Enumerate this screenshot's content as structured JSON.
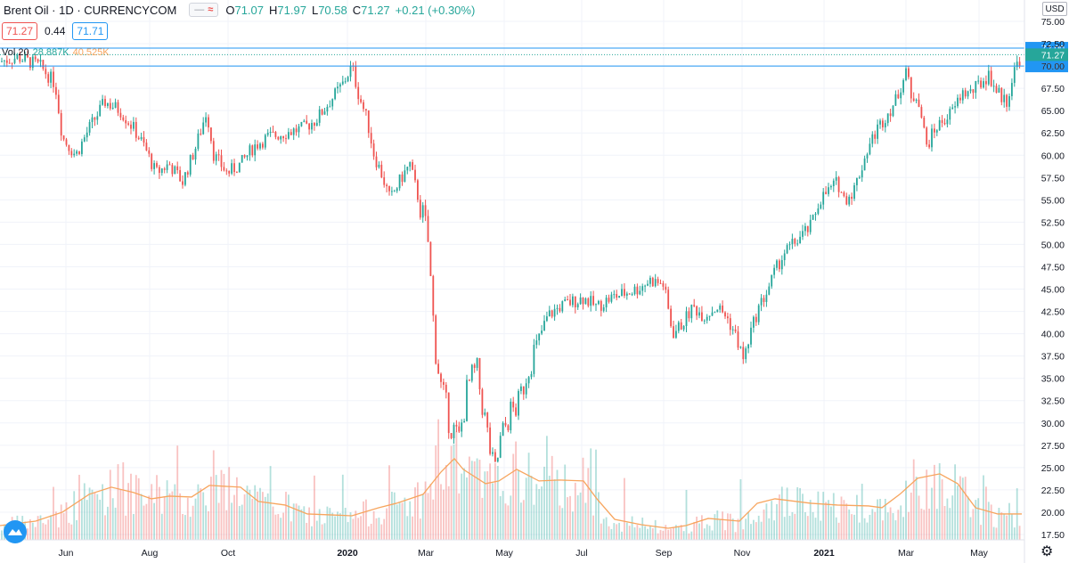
{
  "legend": {
    "title": "Brent Oil · 1D · CURRENCYCOM",
    "btn_dash": "—",
    "btn_wave": "≈",
    "o_label": "O",
    "o_value": "71.07",
    "h_label": "H",
    "h_value": "71.97",
    "l_label": "L",
    "l_value": "70.58",
    "c_label": "C",
    "c_value": "71.27",
    "change": "+0.21 (+0.30%)"
  },
  "quote": {
    "bid": "71.27",
    "spread": "0.44",
    "ask": "71.71"
  },
  "volume_legend": {
    "label": "Vol 20",
    "value": "28.887K",
    "ma": "40.525K"
  },
  "currency": "USD",
  "colors": {
    "up": "#26a69a",
    "down": "#ef5350",
    "line": "#2196f3",
    "ma": "#f7a55e",
    "price_label": "#2196f3",
    "last_label": "#26a69a"
  },
  "chart_data": {
    "type": "candlestick",
    "title": "Brent Oil · 1D · CURRENCYCOM",
    "ylim": [
      16.5,
      76
    ],
    "y_ticks": [
      "75.00",
      "72.50",
      "70.00",
      "67.50",
      "65.00",
      "62.50",
      "60.00",
      "57.50",
      "55.00",
      "52.50",
      "50.00",
      "47.50",
      "45.00",
      "42.50",
      "40.00",
      "37.50",
      "35.00",
      "32.50",
      "30.00",
      "27.50",
      "25.00",
      "22.50",
      "20.00",
      "17.50"
    ],
    "x_ticks": [
      "Jun",
      "Aug",
      "Oct",
      "2020",
      "Mar",
      "May",
      "Jul",
      "Sep",
      "Nov",
      "2021",
      "Mar",
      "May"
    ],
    "price_lines": [
      {
        "value": 72.0,
        "label": "72.00"
      },
      {
        "value": 70.0,
        "label": "70.00"
      }
    ],
    "last_price": {
      "value": 71.27,
      "label": "71.27"
    },
    "price_path": [
      [
        0,
        70.5
      ],
      [
        20,
        71
      ],
      [
        45,
        70
      ],
      [
        62,
        68
      ],
      [
        70,
        62
      ],
      [
        85,
        60
      ],
      [
        100,
        63
      ],
      [
        118,
        66
      ],
      [
        135,
        65
      ],
      [
        150,
        63
      ],
      [
        162,
        61
      ],
      [
        175,
        58
      ],
      [
        190,
        59
      ],
      [
        205,
        57
      ],
      [
        220,
        61
      ],
      [
        232,
        65
      ],
      [
        240,
        60
      ],
      [
        255,
        58
      ],
      [
        270,
        59
      ],
      [
        285,
        61
      ],
      [
        300,
        62
      ],
      [
        320,
        62.5
      ],
      [
        340,
        63
      ],
      [
        355,
        64
      ],
      [
        370,
        66
      ],
      [
        385,
        68
      ],
      [
        395,
        70
      ],
      [
        402,
        67
      ],
      [
        412,
        64
      ],
      [
        420,
        60
      ],
      [
        428,
        58
      ],
      [
        438,
        55
      ],
      [
        448,
        57
      ],
      [
        460,
        59
      ],
      [
        470,
        55
      ],
      [
        480,
        51
      ],
      [
        484,
        45
      ],
      [
        488,
        39
      ],
      [
        495,
        34
      ],
      [
        505,
        30
      ],
      [
        515,
        28
      ],
      [
        525,
        34
      ],
      [
        535,
        36
      ],
      [
        545,
        30
      ],
      [
        555,
        24
      ],
      [
        562,
        28
      ],
      [
        572,
        31
      ],
      [
        582,
        32
      ],
      [
        592,
        36
      ],
      [
        603,
        39
      ],
      [
        615,
        42
      ],
      [
        628,
        43
      ],
      [
        640,
        43.5
      ],
      [
        655,
        44
      ],
      [
        670,
        43
      ],
      [
        685,
        44
      ],
      [
        700,
        44.5
      ],
      [
        715,
        45
      ],
      [
        730,
        46
      ],
      [
        745,
        45.5
      ],
      [
        755,
        40
      ],
      [
        765,
        41
      ],
      [
        778,
        43
      ],
      [
        790,
        42
      ],
      [
        805,
        43
      ],
      [
        815,
        42
      ],
      [
        825,
        40
      ],
      [
        835,
        37
      ],
      [
        842,
        40
      ],
      [
        852,
        43
      ],
      [
        860,
        44.5
      ],
      [
        870,
        47
      ],
      [
        880,
        49
      ],
      [
        890,
        50
      ],
      [
        900,
        51
      ],
      [
        910,
        52
      ],
      [
        920,
        55
      ],
      [
        930,
        56
      ],
      [
        940,
        57
      ],
      [
        948,
        55
      ],
      [
        958,
        56
      ],
      [
        965,
        58
      ],
      [
        975,
        61
      ],
      [
        985,
        63
      ],
      [
        995,
        64.5
      ],
      [
        1005,
        66
      ],
      [
        1012,
        68
      ],
      [
        1018,
        70
      ],
      [
        1022,
        66
      ],
      [
        1030,
        67
      ],
      [
        1040,
        61
      ],
      [
        1050,
        63
      ],
      [
        1060,
        64
      ],
      [
        1070,
        65
      ],
      [
        1080,
        67
      ],
      [
        1090,
        67
      ],
      [
        1100,
        68
      ],
      [
        1110,
        69
      ],
      [
        1120,
        67
      ],
      [
        1130,
        66
      ],
      [
        1140,
        70
      ],
      [
        1147,
        71.27
      ]
    ],
    "volume_ma_path": [
      [
        0,
        18.5
      ],
      [
        40,
        19
      ],
      [
        70,
        20
      ],
      [
        100,
        22
      ],
      [
        125,
        22.8
      ],
      [
        150,
        22.2
      ],
      [
        170,
        21.5
      ],
      [
        190,
        21.8
      ],
      [
        215,
        21.7
      ],
      [
        235,
        23
      ],
      [
        270,
        22.8
      ],
      [
        290,
        21.2
      ],
      [
        320,
        20.8
      ],
      [
        345,
        19.8
      ],
      [
        370,
        19.7
      ],
      [
        395,
        19.6
      ],
      [
        425,
        20.5
      ],
      [
        445,
        21
      ],
      [
        475,
        22
      ],
      [
        495,
        24.5
      ],
      [
        510,
        26
      ],
      [
        520,
        24.8
      ],
      [
        545,
        23.2
      ],
      [
        560,
        23.5
      ],
      [
        580,
        24.8
      ],
      [
        605,
        23.5
      ],
      [
        628,
        23.6
      ],
      [
        655,
        23.5
      ],
      [
        670,
        21.5
      ],
      [
        690,
        19.2
      ],
      [
        720,
        18.6
      ],
      [
        750,
        18.2
      ],
      [
        770,
        18.5
      ],
      [
        795,
        19.3
      ],
      [
        830,
        19
      ],
      [
        850,
        21
      ],
      [
        870,
        21.5
      ],
      [
        910,
        21
      ],
      [
        940,
        20.8
      ],
      [
        975,
        20.7
      ],
      [
        990,
        20.5
      ],
      [
        1010,
        22
      ],
      [
        1030,
        23.8
      ],
      [
        1055,
        24.3
      ],
      [
        1075,
        23.2
      ],
      [
        1095,
        20.5
      ],
      [
        1120,
        19.8
      ],
      [
        1147,
        19.8
      ]
    ]
  }
}
